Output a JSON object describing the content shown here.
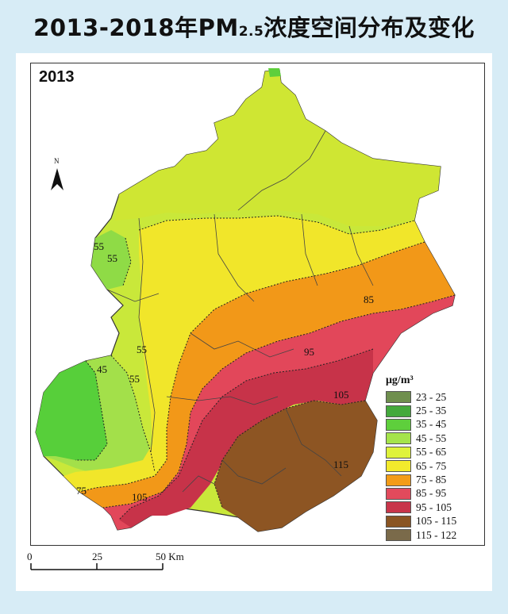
{
  "title": {
    "main": "2013-2018年PM",
    "subscript": "2.5",
    "suffix": "浓度空间分布及变化"
  },
  "map": {
    "year": "2013",
    "north_label": "N",
    "legend": {
      "unit_title": "μg/m³",
      "items": [
        {
          "label": "23 - 25",
          "color": "#6f8f4e"
        },
        {
          "label": "25 - 35",
          "color": "#44a93c"
        },
        {
          "label": "35 - 45",
          "color": "#5ecf3c"
        },
        {
          "label": "45 - 55",
          "color": "#a5e44b"
        },
        {
          "label": "55 - 65",
          "color": "#dff23a"
        },
        {
          "label": "65 - 75",
          "color": "#f3ea2c"
        },
        {
          "label": "75 - 85",
          "color": "#f39c18"
        },
        {
          "label": "85 - 95",
          "color": "#e24a5c"
        },
        {
          "label": "95 - 105",
          "color": "#c8354a"
        },
        {
          "label": "105 - 115",
          "color": "#8a5523"
        },
        {
          "label": "115 - 122",
          "color": "#7a6a4a"
        }
      ]
    },
    "contour_labels": [
      "55",
      "55",
      "55",
      "45",
      "55",
      "75",
      "85",
      "95",
      "105",
      "105",
      "115"
    ],
    "scale": {
      "ticks": [
        "0",
        "25",
        "50 Km"
      ]
    }
  }
}
